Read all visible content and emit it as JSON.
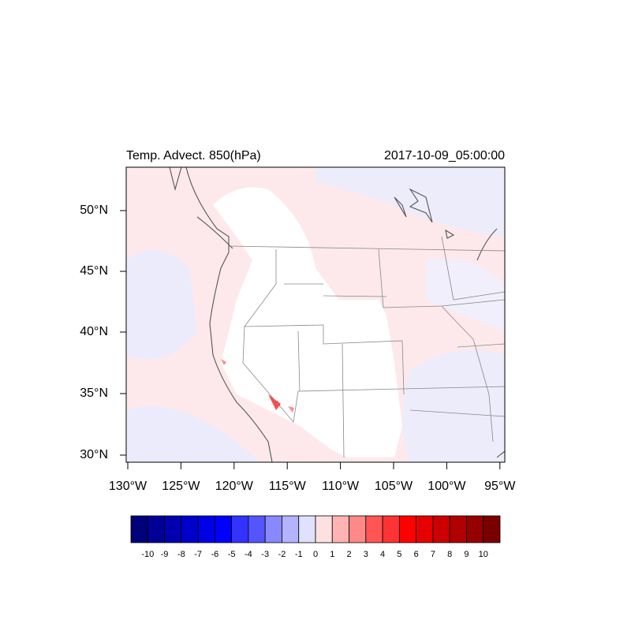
{
  "title_left": "Temp. Advect. 850(hPa)",
  "title_right": "2017-10-09_05:00:00",
  "lat_labels": [
    "50°N",
    "45°N",
    "40°N",
    "35°N",
    "30°N"
  ],
  "lon_labels": [
    "130°W",
    "125°W",
    "120°W",
    "115°W",
    "110°W",
    "105°W",
    "100°W",
    "95°W"
  ],
  "colorbar": {
    "labels": [
      -10,
      -9,
      -8,
      -7,
      -6,
      -5,
      -4,
      -3,
      -2,
      -1,
      0,
      1,
      2,
      3,
      4,
      5,
      6,
      7,
      8,
      9,
      10
    ],
    "colors": [
      "#00007a",
      "#000096",
      "#0000b0",
      "#0000cc",
      "#0000e6",
      "#0000ff",
      "#3333ff",
      "#5555ff",
      "#8888ff",
      "#b3b3ff",
      "#e0e0ff",
      "#ffe0e0",
      "#ffb3b3",
      "#ff8888",
      "#ff5555",
      "#ff3333",
      "#ff0000",
      "#e60000",
      "#cc0000",
      "#b00000",
      "#960000",
      "#7a0000"
    ]
  }
}
